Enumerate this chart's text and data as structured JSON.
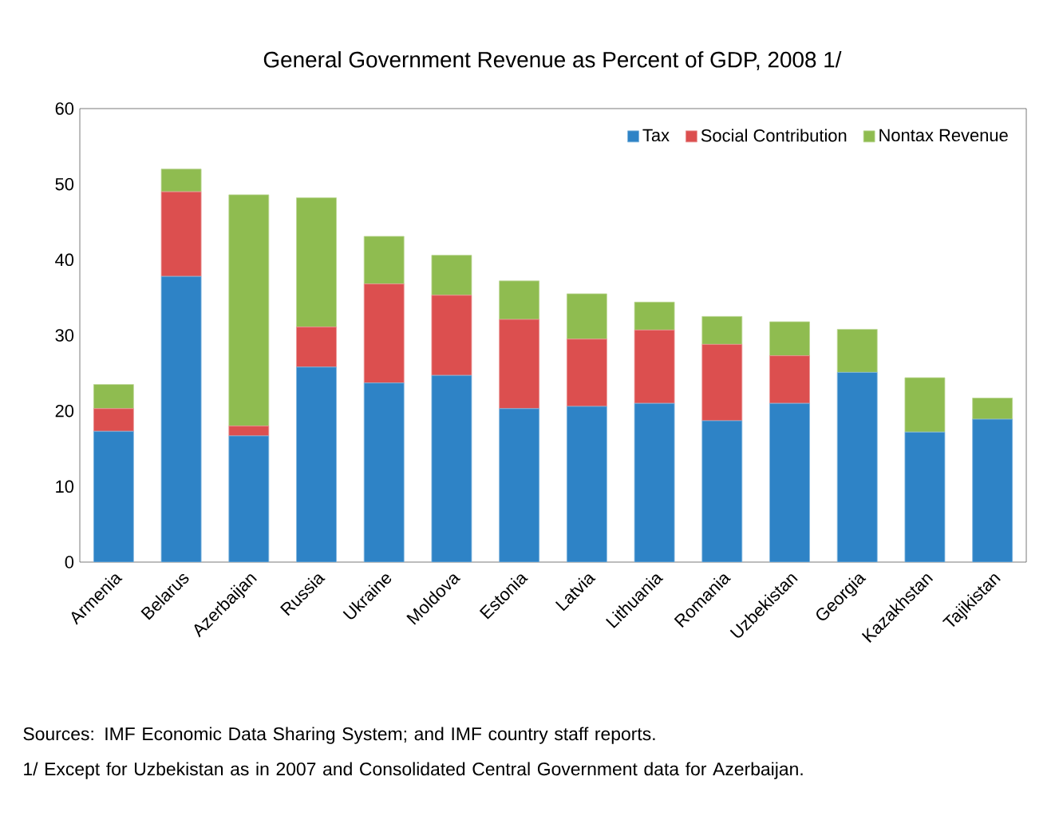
{
  "chart_data": {
    "type": "bar",
    "stacked": true,
    "title": "General Government Revenue as Percent of GDP, 2008 1/",
    "categories": [
      "Armenia",
      "Belarus",
      "Azerbaijan",
      "Russia",
      "Ukraine",
      "Moldova",
      "Estonia",
      "Latvia",
      "Lithuania",
      "Romania",
      "Uzbekistan",
      "Georgia",
      "Kazakhstan",
      "Tajikistan"
    ],
    "series": [
      {
        "name": "Tax",
        "color": "#2e83c6",
        "values": [
          17.3,
          37.8,
          16.7,
          25.8,
          23.7,
          24.7,
          20.3,
          20.6,
          21.0,
          18.7,
          21.0,
          25.1,
          17.2,
          18.9
        ]
      },
      {
        "name": "Social Contribution",
        "color": "#dc4f4f",
        "values": [
          3.0,
          11.2,
          1.3,
          5.3,
          13.1,
          10.6,
          11.8,
          8.9,
          9.7,
          10.1,
          6.3,
          0,
          0,
          0
        ]
      },
      {
        "name": "Nontax Revenue",
        "color": "#8fbc50",
        "values": [
          3.2,
          3.0,
          30.6,
          17.1,
          6.3,
          5.3,
          5.1,
          6.0,
          3.7,
          3.7,
          4.5,
          5.7,
          7.2,
          2.8
        ]
      }
    ],
    "ylim": [
      0,
      60
    ],
    "yticks": [
      0,
      10,
      20,
      30,
      40,
      50,
      60
    ],
    "grid": false,
    "legend": "top right",
    "annotations": [
      "Sources: IMF Economic Data Sharing System; and IMF country staff reports.",
      "1/ Except for Uzbekistan as in 2007 and Consolidated Central Government data for Azerbaijan."
    ]
  }
}
